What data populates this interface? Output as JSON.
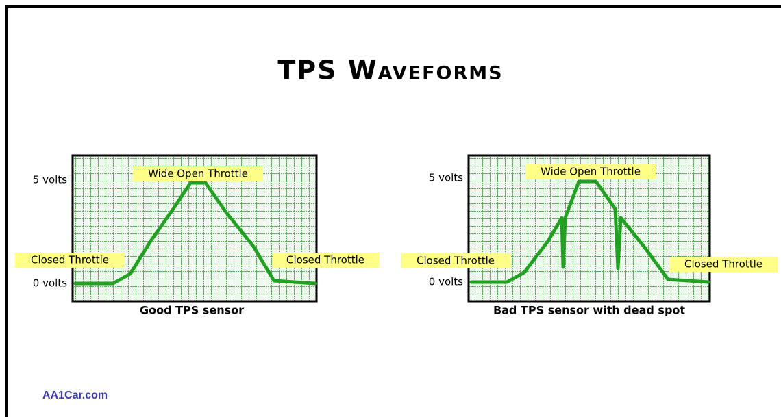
{
  "title": "TPS Waveforms",
  "panels": [
    {
      "caption": "Good TPS sensor",
      "top_label": "5 volts",
      "bottom_label": "0 volts",
      "peak_label": "Wide Open Throttle",
      "left_label": "Closed Throttle",
      "right_label": "Closed Throttle"
    },
    {
      "caption": "Bad TPS sensor with dead spot",
      "top_label": "5 volts",
      "bottom_label": "0 volts",
      "peak_label": "Wide Open Throttle",
      "left_label": "Closed Throttle",
      "right_label": "Closed Throttle"
    }
  ],
  "footer": "AA1Car.com"
}
